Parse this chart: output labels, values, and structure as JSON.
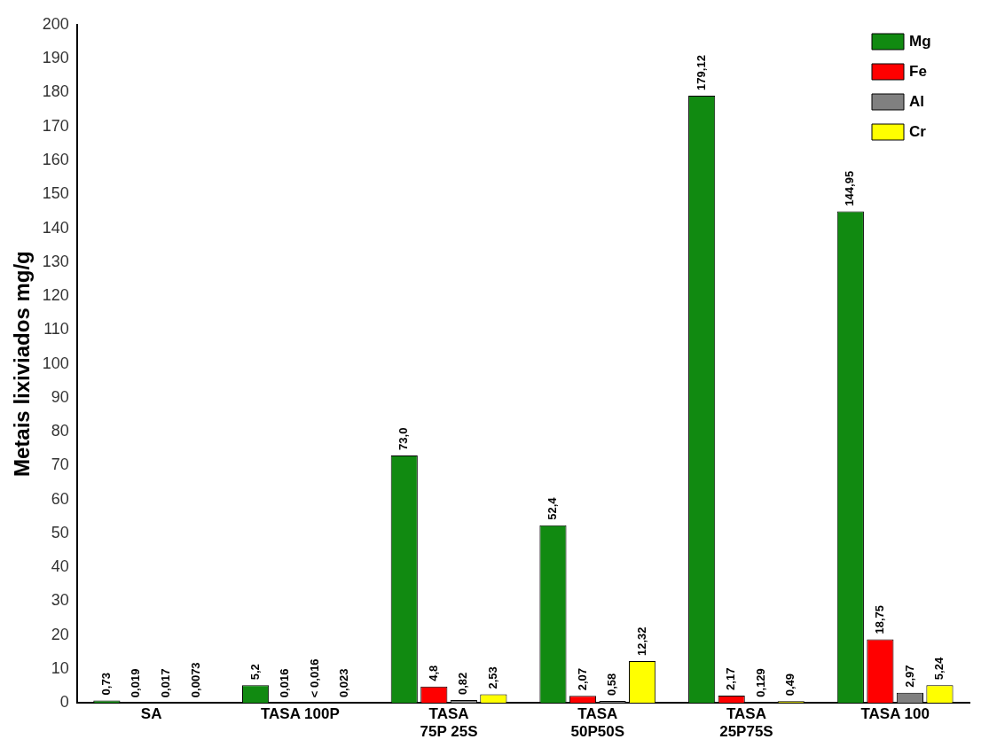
{
  "chart_data": {
    "type": "bar",
    "ylabel": "Metais lixiviados mg/g",
    "categories": [
      "SA",
      "TASA 100P",
      "TASA\n75P 25S",
      "TASA\n50P50S",
      "TASA\n25P75S",
      "TASA 100"
    ],
    "series": [
      {
        "name": "Mg",
        "color": "#118a11",
        "values": [
          0.73,
          5.2,
          73.0,
          52.4,
          179.12,
          144.95
        ],
        "value_labels": [
          "0,73",
          "5,2",
          "73,0",
          "52,4",
          "179,12",
          "144,95"
        ]
      },
      {
        "name": "Fe",
        "color": "#ff0000",
        "values": [
          0.019,
          0.016,
          4.8,
          2.07,
          2.17,
          18.75
        ],
        "value_labels": [
          "0,019",
          "0,016",
          "4,8",
          "2,07",
          "2,17",
          "18,75"
        ]
      },
      {
        "name": "Al",
        "color": "#808080",
        "values": [
          0.017,
          0.016,
          0.82,
          0.58,
          0.129,
          2.97
        ],
        "value_labels": [
          "0,017",
          "< 0,016",
          "0,82",
          "0,58",
          "0,129",
          "2,97"
        ]
      },
      {
        "name": "Cr",
        "color": "#ffff00",
        "values": [
          0.0073,
          0.023,
          2.53,
          12.32,
          0.49,
          5.24
        ],
        "value_labels": [
          "0,0073",
          "0,023",
          "2,53",
          "12,32",
          "0,49",
          "5,24"
        ]
      }
    ],
    "ylim": [
      0,
      200
    ],
    "yticks": [
      0,
      10,
      20,
      30,
      40,
      50,
      60,
      70,
      80,
      90,
      100,
      110,
      120,
      130,
      140,
      150,
      160,
      170,
      180,
      190,
      200
    ],
    "grid": false,
    "legend": "top right"
  }
}
